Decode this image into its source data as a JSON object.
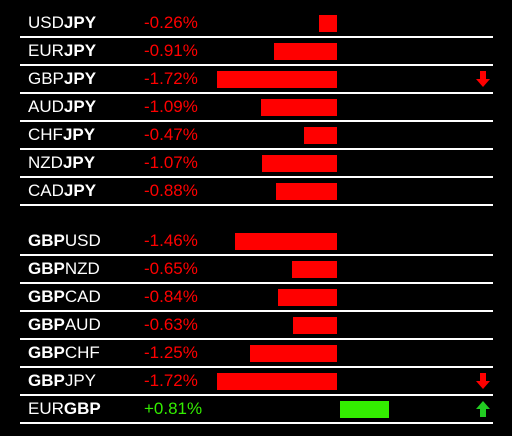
{
  "colors": {
    "negative": "#ff0000",
    "positive": "#33ee00",
    "arrow_down": "#ff0000",
    "arrow_up": "#22cc22"
  },
  "scale": {
    "full_width_percent": 1.72
  },
  "groups": [
    {
      "id": "jpy",
      "rows": [
        {
          "prefix": "USD",
          "suffix": "JPY",
          "bold": "suffix",
          "change": "-0.26%",
          "value": -0.26,
          "arrow": null
        },
        {
          "prefix": "EUR",
          "suffix": "JPY",
          "bold": "suffix",
          "change": "-0.91%",
          "value": -0.91,
          "arrow": null
        },
        {
          "prefix": "GBP",
          "suffix": "JPY",
          "bold": "suffix",
          "change": "-1.72%",
          "value": -1.72,
          "arrow": "down"
        },
        {
          "prefix": "AUD",
          "suffix": "JPY",
          "bold": "suffix",
          "change": "-1.09%",
          "value": -1.09,
          "arrow": null
        },
        {
          "prefix": "CHF",
          "suffix": "JPY",
          "bold": "suffix",
          "change": "-0.47%",
          "value": -0.47,
          "arrow": null
        },
        {
          "prefix": "NZD",
          "suffix": "JPY",
          "bold": "suffix",
          "change": "-1.07%",
          "value": -1.07,
          "arrow": null
        },
        {
          "prefix": "CAD",
          "suffix": "JPY",
          "bold": "suffix",
          "change": "-0.88%",
          "value": -0.88,
          "arrow": null
        }
      ]
    },
    {
      "id": "gbp",
      "rows": [
        {
          "prefix": "GBP",
          "suffix": "USD",
          "bold": "prefix",
          "change": "-1.46%",
          "value": -1.46,
          "arrow": null
        },
        {
          "prefix": "GBP",
          "suffix": "NZD",
          "bold": "prefix",
          "change": "-0.65%",
          "value": -0.65,
          "arrow": null
        },
        {
          "prefix": "GBP",
          "suffix": "CAD",
          "bold": "prefix",
          "change": "-0.84%",
          "value": -0.84,
          "arrow": null
        },
        {
          "prefix": "GBP",
          "suffix": "AUD",
          "bold": "prefix",
          "change": "-0.63%",
          "value": -0.63,
          "arrow": null
        },
        {
          "prefix": "GBP",
          "suffix": "CHF",
          "bold": "prefix",
          "change": "-1.25%",
          "value": -1.25,
          "arrow": null
        },
        {
          "prefix": "GBP",
          "suffix": "JPY",
          "bold": "prefix",
          "change": "-1.72%",
          "value": -1.72,
          "arrow": "down"
        },
        {
          "prefix": "EUR",
          "suffix": "GBP",
          "bold": "suffix",
          "change": "+0.81%",
          "value": 0.81,
          "arrow": "up"
        }
      ]
    }
  ]
}
